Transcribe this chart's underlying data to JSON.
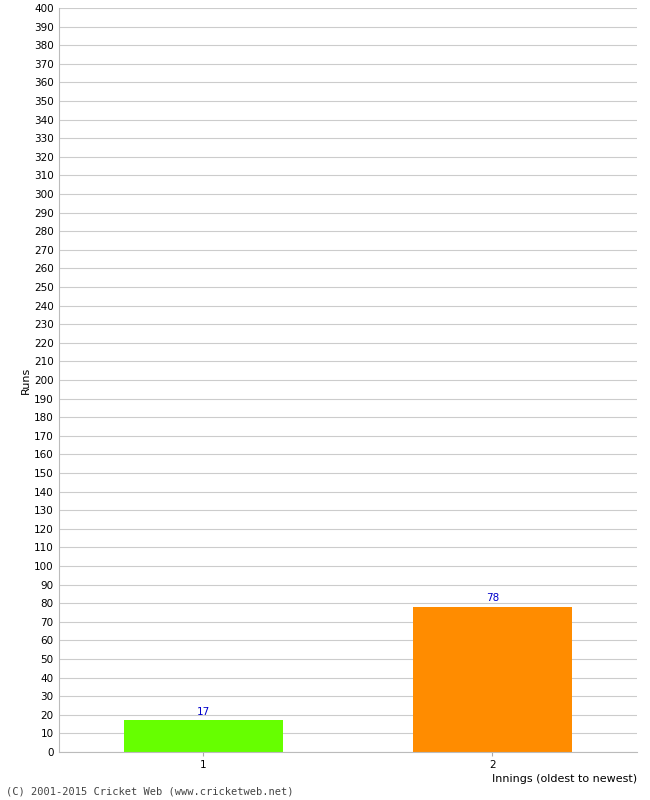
{
  "categories": [
    "1",
    "2"
  ],
  "values": [
    17,
    78
  ],
  "bar_colors": [
    "#66ff00",
    "#ff8c00"
  ],
  "xlabel": "Innings (oldest to newest)",
  "ylabel": "Runs",
  "ylim": [
    0,
    400
  ],
  "background_color": "#ffffff",
  "grid_color": "#cccccc",
  "annotation_color": "#0000cc",
  "annotation_fontsize": 7.5,
  "axis_label_fontsize": 8,
  "tick_fontsize": 7.5,
  "footer_text": "(C) 2001-2015 Cricket Web (www.cricketweb.net)",
  "footer_fontsize": 7.5
}
